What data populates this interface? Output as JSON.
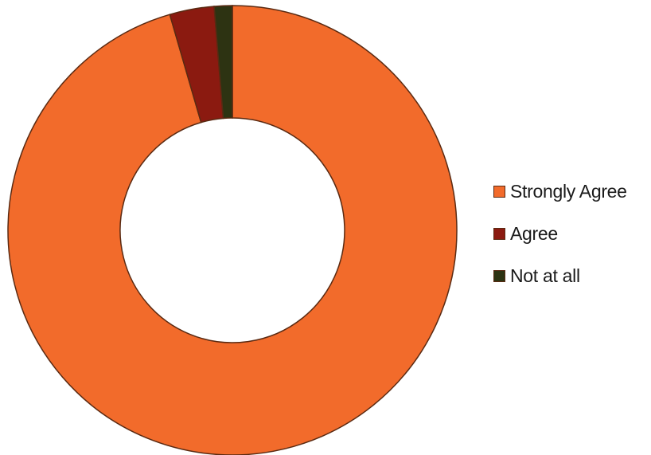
{
  "chart_data": {
    "type": "pie",
    "variant": "doughnut",
    "title": "",
    "series": [
      {
        "name": "Strongly Agree",
        "value": 95.5,
        "color": "#f26b2b"
      },
      {
        "name": "Agree",
        "value": 3.2,
        "color": "#8b1a10"
      },
      {
        "name": "Not at all",
        "value": 1.3,
        "color": "#2d3312"
      }
    ],
    "legend_position": "right",
    "slice_border_color": "#5a2a12"
  }
}
